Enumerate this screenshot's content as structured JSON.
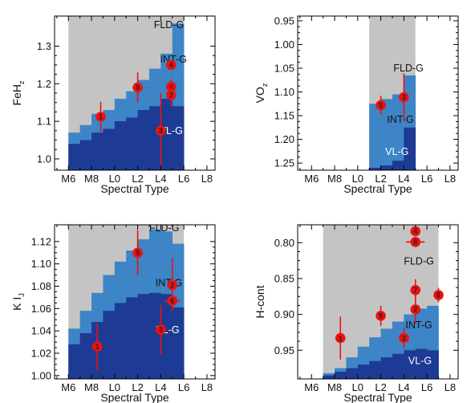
{
  "colors": {
    "gray_zone": "#c4c4c4",
    "intg_zone": "#3d85c6",
    "vlg_zone": "#1d3b94",
    "marker": "#ee1111",
    "marker_text": "#222222",
    "dark_text": "#111111",
    "light_text": "#ffffff"
  },
  "chart_data": [
    {
      "type": "step-area",
      "id": "feh",
      "ylabel_main": "FeH",
      "ylabel_sub": "z",
      "xlabel": "Spectral Type",
      "x_ticks": [
        6,
        8,
        10,
        12,
        14,
        16,
        18
      ],
      "x_tick_labels": [
        "M6",
        "M8",
        "L0",
        "L2",
        "L4",
        "L6",
        "L8"
      ],
      "xlim": [
        4.8,
        18.7
      ],
      "ylim": [
        0.97,
        1.38
      ],
      "y_inverted": false,
      "y_ticks": [
        1.0,
        1.1,
        1.2,
        1.3
      ],
      "y_tick_labels": [
        "1.0",
        "1.1",
        "1.2",
        "1.3"
      ],
      "valid_range": [
        6,
        16
      ],
      "edges": [
        6,
        7,
        8,
        9,
        10,
        11,
        12,
        13,
        14,
        15,
        16
      ],
      "vlg_top": [
        1.04,
        1.05,
        1.07,
        1.08,
        1.1,
        1.11,
        1.13,
        1.14,
        1.16,
        1.14
      ],
      "intg_top": [
        1.07,
        1.09,
        1.12,
        1.13,
        1.16,
        1.18,
        1.21,
        1.24,
        1.28,
        1.36
      ],
      "region_labels": [
        {
          "text": "FLD-G",
          "x": 14.7,
          "y": 1.357,
          "tone": "dark"
        },
        {
          "text": "INT-G",
          "x": 15.1,
          "y": 1.265,
          "tone": "dark"
        },
        {
          "text": "VL-G",
          "x": 14.9,
          "y": 1.075,
          "tone": "light"
        }
      ],
      "markers": [
        {
          "label": "1",
          "x": 8.8,
          "y": 1.112,
          "yerr": 0.04
        },
        {
          "label": "5",
          "x": 12.0,
          "y": 1.19,
          "yerr": 0.04
        },
        {
          "label": "3",
          "x": 14.0,
          "y": 1.075,
          "yerr": 0.1
        },
        {
          "label": "4",
          "x": 14.9,
          "y": 1.25,
          "yerr": 0.0
        },
        {
          "label": "6",
          "x": 14.9,
          "y": 1.192,
          "yerr": 0.02
        },
        {
          "label": "2",
          "x": 14.9,
          "y": 1.17,
          "yerr": 0.03
        }
      ]
    },
    {
      "type": "step-area",
      "id": "vo",
      "ylabel_main": "VO",
      "ylabel_sub": "z",
      "xlabel": "Spectral Type",
      "x_ticks": [
        6,
        8,
        10,
        12,
        14,
        16,
        18
      ],
      "x_tick_labels": [
        "M6",
        "M8",
        "L0",
        "L2",
        "L4",
        "L6",
        "L8"
      ],
      "xlim": [
        4.8,
        18.7
      ],
      "ylim": [
        0.94,
        1.265
      ],
      "y_inverted": true,
      "y_ticks": [
        0.95,
        1.0,
        1.05,
        1.1,
        1.15,
        1.2,
        1.25
      ],
      "y_tick_labels": [
        "0.95",
        "1.00",
        "1.05",
        "1.10",
        "1.15",
        "1.20",
        "1.25"
      ],
      "valid_range": [
        11,
        15
      ],
      "edges": [
        11,
        12,
        13,
        14,
        15
      ],
      "vlg_top": [
        1.26,
        1.255,
        1.245,
        1.175
      ],
      "intg_top": [
        1.125,
        1.115,
        1.105,
        1.065
      ],
      "region_labels": [
        {
          "text": "FLD-G",
          "x": 14.4,
          "y": 1.05,
          "tone": "dark"
        },
        {
          "text": "INT-G",
          "x": 13.7,
          "y": 1.158,
          "tone": "dark"
        },
        {
          "text": "VL-G",
          "x": 13.4,
          "y": 1.226,
          "tone": "light"
        }
      ],
      "markers": [
        {
          "label": "5",
          "x": 12.0,
          "y": 1.128,
          "yerr": 0.02
        },
        {
          "label": "3",
          "x": 14.0,
          "y": 1.111,
          "yerr": 0.05
        }
      ]
    },
    {
      "type": "step-area",
      "id": "ki",
      "ylabel_main": "K I",
      "ylabel_sub": "J",
      "xlabel": "Spectral Type",
      "x_ticks": [
        6,
        8,
        10,
        12,
        14,
        16,
        18
      ],
      "x_tick_labels": [
        "M6",
        "M8",
        "L0",
        "L2",
        "L4",
        "L6",
        "L8"
      ],
      "xlim": [
        4.8,
        18.7
      ],
      "ylim": [
        0.997,
        1.135
      ],
      "y_inverted": false,
      "y_ticks": [
        1.0,
        1.02,
        1.04,
        1.06,
        1.08,
        1.1,
        1.12
      ],
      "y_tick_labels": [
        "1.00",
        "1.02",
        "1.04",
        "1.06",
        "1.08",
        "1.10",
        "1.12"
      ],
      "valid_range": [
        6,
        16
      ],
      "edges": [
        6,
        7,
        8,
        9,
        10,
        11,
        12,
        13,
        14,
        15,
        16
      ],
      "vlg_top": [
        1.028,
        1.038,
        1.048,
        1.058,
        1.065,
        1.07,
        1.073,
        1.074,
        1.073,
        1.061
      ],
      "intg_top": [
        1.042,
        1.058,
        1.074,
        1.09,
        1.102,
        1.112,
        1.122,
        1.131,
        1.129,
        1.118
      ],
      "region_labels": [
        {
          "text": "FLD-G",
          "x": 14.3,
          "y": 1.132,
          "tone": "dark"
        },
        {
          "text": "INT-G",
          "x": 14.7,
          "y": 1.083,
          "tone": "dark"
        },
        {
          "text": "VL-G",
          "x": 14.6,
          "y": 1.041,
          "tone": "light"
        }
      ],
      "markers": [
        {
          "label": "1",
          "x": 8.5,
          "y": 1.026,
          "yerr": 0.021
        },
        {
          "label": "5",
          "x": 12.0,
          "y": 1.11,
          "yerr": 0.02
        },
        {
          "label": "3",
          "x": 14.0,
          "y": 1.041,
          "yerr": 0.022
        },
        {
          "label": "2",
          "x": 15.0,
          "y": 1.081,
          "yerr": 0.024
        },
        {
          "label": "6",
          "x": 15.0,
          "y": 1.067,
          "yerr": 0.006,
          "xerr": 0.7
        }
      ]
    },
    {
      "type": "step-area",
      "id": "hcont",
      "ylabel_main": "H-cont",
      "ylabel_sub": "",
      "xlabel": "Spectral Type",
      "x_ticks": [
        6,
        8,
        10,
        12,
        14,
        16,
        18
      ],
      "x_tick_labels": [
        "M6",
        "M8",
        "L0",
        "L2",
        "L4",
        "L6",
        "L8"
      ],
      "xlim": [
        4.8,
        18.7
      ],
      "ylim": [
        0.775,
        0.99
      ],
      "y_inverted": true,
      "y_ticks": [
        0.8,
        0.85,
        0.9,
        0.95
      ],
      "y_tick_labels": [
        "0.80",
        "0.85",
        "0.90",
        "0.95"
      ],
      "valid_range": [
        7,
        17
      ],
      "edges": [
        7,
        8,
        9,
        10,
        11,
        12,
        13,
        14,
        15,
        16,
        17
      ],
      "vlg_top": [
        0.985,
        0.98,
        0.975,
        0.97,
        0.965,
        0.96,
        0.955,
        0.95,
        0.948,
        0.95
      ],
      "intg_top": [
        0.982,
        0.975,
        0.96,
        0.945,
        0.932,
        0.92,
        0.91,
        0.9,
        0.892,
        0.888
      ],
      "region_labels": [
        {
          "text": "FLD-G",
          "x": 15.3,
          "y": 0.826,
          "tone": "dark"
        },
        {
          "text": "INT-G",
          "x": 15.3,
          "y": 0.915,
          "tone": "dark"
        },
        {
          "text": "VL-G",
          "x": 15.4,
          "y": 0.965,
          "tone": "light"
        }
      ],
      "markers": [
        {
          "label": "1",
          "x": 8.5,
          "y": 0.933,
          "yerr": 0.03
        },
        {
          "label": "5",
          "x": 12.0,
          "y": 0.902,
          "yerr": 0.014
        },
        {
          "label": "3",
          "x": 14.0,
          "y": 0.933,
          "yerr": 0.014
        },
        {
          "label": "7",
          "x": 15.0,
          "y": 0.866,
          "yerr": 0.015
        },
        {
          "label": "2",
          "x": 15.0,
          "y": 0.893,
          "yerr": 0.02
        },
        {
          "label": "6",
          "x": 17.0,
          "y": 0.873,
          "yerr": 0.01
        },
        {
          "label": "4",
          "x": 15.0,
          "y": 0.784,
          "yerr": 0.0
        },
        {
          "label": "8",
          "x": 15.0,
          "y": 0.799,
          "yerr": 0.0,
          "xerr": 0.8
        }
      ]
    }
  ]
}
